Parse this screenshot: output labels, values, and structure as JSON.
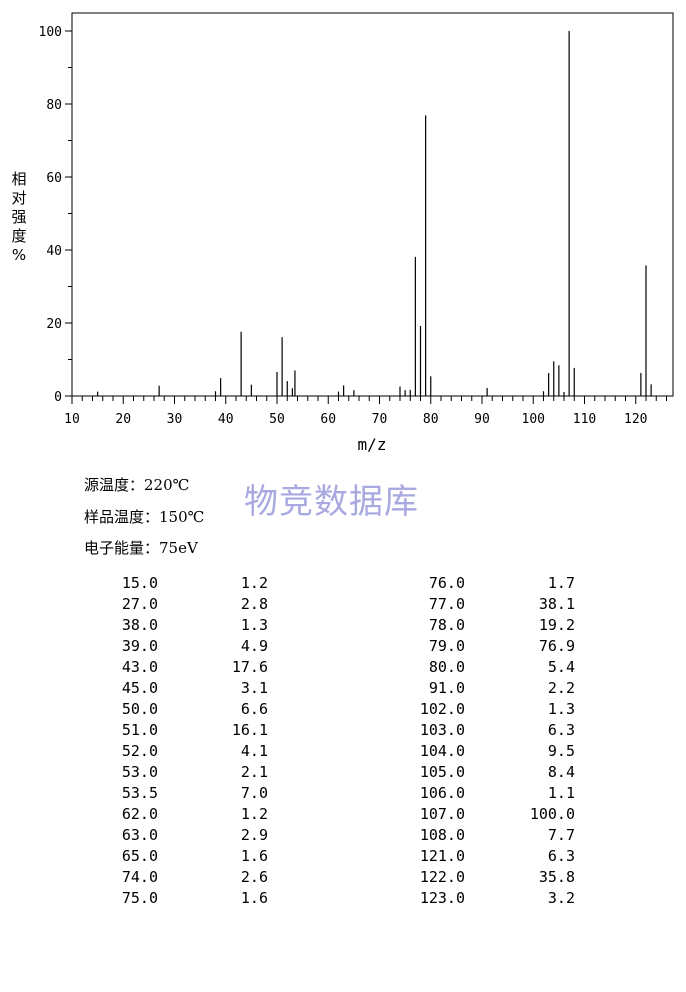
{
  "chart_data": {
    "type": "bar",
    "ylabel_chars": [
      "相",
      "对",
      "强",
      "度",
      "%"
    ],
    "xlabel": "m/z",
    "xlim": [
      10,
      127
    ],
    "ylim": [
      0,
      105
    ],
    "x_ticks": [
      10,
      20,
      30,
      40,
      50,
      60,
      70,
      80,
      90,
      100,
      110,
      120
    ],
    "y_ticks": [
      0,
      20,
      40,
      60,
      80,
      100
    ],
    "peaks": [
      {
        "mz": 15.0,
        "intensity": 1.2
      },
      {
        "mz": 27.0,
        "intensity": 2.8
      },
      {
        "mz": 38.0,
        "intensity": 1.3
      },
      {
        "mz": 39.0,
        "intensity": 4.9
      },
      {
        "mz": 43.0,
        "intensity": 17.6
      },
      {
        "mz": 45.0,
        "intensity": 3.1
      },
      {
        "mz": 50.0,
        "intensity": 6.6
      },
      {
        "mz": 51.0,
        "intensity": 16.1
      },
      {
        "mz": 52.0,
        "intensity": 4.1
      },
      {
        "mz": 53.0,
        "intensity": 2.1
      },
      {
        "mz": 53.5,
        "intensity": 7.0
      },
      {
        "mz": 62.0,
        "intensity": 1.2
      },
      {
        "mz": 63.0,
        "intensity": 2.9
      },
      {
        "mz": 65.0,
        "intensity": 1.6
      },
      {
        "mz": 74.0,
        "intensity": 2.6
      },
      {
        "mz": 75.0,
        "intensity": 1.6
      },
      {
        "mz": 76.0,
        "intensity": 1.7
      },
      {
        "mz": 77.0,
        "intensity": 38.1
      },
      {
        "mz": 78.0,
        "intensity": 19.2
      },
      {
        "mz": 79.0,
        "intensity": 76.9
      },
      {
        "mz": 80.0,
        "intensity": 5.4
      },
      {
        "mz": 91.0,
        "intensity": 2.2
      },
      {
        "mz": 102.0,
        "intensity": 1.3
      },
      {
        "mz": 103.0,
        "intensity": 6.3
      },
      {
        "mz": 104.0,
        "intensity": 9.5
      },
      {
        "mz": 105.0,
        "intensity": 8.4
      },
      {
        "mz": 106.0,
        "intensity": 1.1
      },
      {
        "mz": 107.0,
        "intensity": 100.0
      },
      {
        "mz": 108.0,
        "intensity": 7.7
      },
      {
        "mz": 121.0,
        "intensity": 6.3
      },
      {
        "mz": 122.0,
        "intensity": 35.8
      },
      {
        "mz": 123.0,
        "intensity": 3.2
      }
    ]
  },
  "watermark": "物竞数据库",
  "conditions": [
    {
      "label": "源温度：",
      "value": "220℃"
    },
    {
      "label": "样品温度：",
      "value": "150℃"
    },
    {
      "label": "电子能量：",
      "value": "75eV"
    }
  ],
  "table_rows": [
    [
      "15.0",
      "1.2",
      "76.0",
      "1.7"
    ],
    [
      "27.0",
      "2.8",
      "77.0",
      "38.1"
    ],
    [
      "38.0",
      "1.3",
      "78.0",
      "19.2"
    ],
    [
      "39.0",
      "4.9",
      "79.0",
      "76.9"
    ],
    [
      "43.0",
      "17.6",
      "80.0",
      "5.4"
    ],
    [
      "45.0",
      "3.1",
      "91.0",
      "2.2"
    ],
    [
      "50.0",
      "6.6",
      "102.0",
      "1.3"
    ],
    [
      "51.0",
      "16.1",
      "103.0",
      "6.3"
    ],
    [
      "52.0",
      "4.1",
      "104.0",
      "9.5"
    ],
    [
      "53.0",
      "2.1",
      "105.0",
      "8.4"
    ],
    [
      "53.5",
      "7.0",
      "106.0",
      "1.1"
    ],
    [
      "62.0",
      "1.2",
      "107.0",
      "100.0"
    ],
    [
      "63.0",
      "2.9",
      "108.0",
      "7.7"
    ],
    [
      "65.0",
      "1.6",
      "121.0",
      "6.3"
    ],
    [
      "74.0",
      "2.6",
      "122.0",
      "35.8"
    ],
    [
      "75.0",
      "1.6",
      "123.0",
      "3.2"
    ]
  ]
}
